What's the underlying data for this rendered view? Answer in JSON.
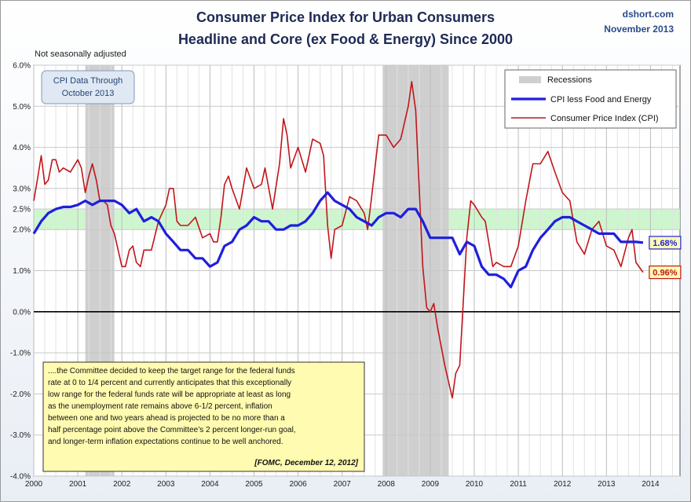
{
  "title_line1": "Consumer Price Index for Urban Consumers",
  "title_line2": "Headline and Core (ex Food & Energy) Since 2000",
  "source": "dshort.com",
  "date": "November 2013",
  "note": "Not seasonally adjusted",
  "data_through_line1": "CPI Data Through",
  "data_through_line2": "October 2013",
  "quote_lines": [
    "....the Committee decided  to keep the target range for the federal funds",
    "rate at 0 to 1/4 percent and currently anticipates that this exceptionally",
    "low range for the federal funds rate will be appropriate at least as long",
    "as the unemployment  rate remains above 6-1/2 percent, inflation",
    "between one and two years ahead is projected to be no more than a",
    "half percentage point above the Committee’s 2 percent longer-run goal,",
    "and longer-term inflation expectations continue to be well anchored."
  ],
  "quote_source": "[FOMC, December 12, 2012]",
  "colors": {
    "core": "#1f1fdd",
    "cpi": "#c0161b",
    "band": "#c9f5c9",
    "recession": "#cfcfcf"
  },
  "chart_data": {
    "type": "line",
    "xlabel": "",
    "ylabel": "",
    "xlim": [
      2000,
      2014.67
    ],
    "ylim": [
      -4.0,
      6.0
    ],
    "x_ticks": [
      "2000",
      "2001",
      "2002",
      "2003",
      "2004",
      "2005",
      "2006",
      "2007",
      "2008",
      "2009",
      "2010",
      "2011",
      "2012",
      "2013",
      "2014"
    ],
    "y_ticks": [
      "6.0%",
      "5.0%",
      "4.0%",
      "3.0%",
      "2.5%",
      "2.0%",
      "1.0%",
      "0.0%",
      "-1.0%",
      "-2.0%",
      "-3.0%",
      "-4.0%"
    ],
    "target_band": [
      2.0,
      2.5
    ],
    "recessions": [
      {
        "label": "Recessions",
        "start": 2001.17,
        "end": 2001.83
      },
      {
        "start": 2007.92,
        "end": 2009.42
      }
    ],
    "series": [
      {
        "name": "CPI less Food and Energy",
        "end_label": "1.68%",
        "points": [
          [
            2000.0,
            1.9
          ],
          [
            2000.17,
            2.2
          ],
          [
            2000.33,
            2.4
          ],
          [
            2000.5,
            2.5
          ],
          [
            2000.67,
            2.55
          ],
          [
            2000.83,
            2.55
          ],
          [
            2001.0,
            2.6
          ],
          [
            2001.17,
            2.7
          ],
          [
            2001.33,
            2.6
          ],
          [
            2001.5,
            2.7
          ],
          [
            2001.67,
            2.7
          ],
          [
            2001.83,
            2.7
          ],
          [
            2002.0,
            2.6
          ],
          [
            2002.17,
            2.4
          ],
          [
            2002.33,
            2.5
          ],
          [
            2002.5,
            2.2
          ],
          [
            2002.67,
            2.3
          ],
          [
            2002.83,
            2.2
          ],
          [
            2003.0,
            1.9
          ],
          [
            2003.17,
            1.7
          ],
          [
            2003.33,
            1.5
          ],
          [
            2003.5,
            1.5
          ],
          [
            2003.67,
            1.3
          ],
          [
            2003.83,
            1.3
          ],
          [
            2004.0,
            1.1
          ],
          [
            2004.17,
            1.2
          ],
          [
            2004.33,
            1.6
          ],
          [
            2004.5,
            1.7
          ],
          [
            2004.67,
            2.0
          ],
          [
            2004.83,
            2.1
          ],
          [
            2005.0,
            2.3
          ],
          [
            2005.17,
            2.2
          ],
          [
            2005.33,
            2.2
          ],
          [
            2005.5,
            2.0
          ],
          [
            2005.67,
            2.0
          ],
          [
            2005.83,
            2.1
          ],
          [
            2006.0,
            2.1
          ],
          [
            2006.17,
            2.2
          ],
          [
            2006.33,
            2.4
          ],
          [
            2006.5,
            2.7
          ],
          [
            2006.67,
            2.9
          ],
          [
            2006.83,
            2.7
          ],
          [
            2007.0,
            2.6
          ],
          [
            2007.17,
            2.5
          ],
          [
            2007.33,
            2.3
          ],
          [
            2007.5,
            2.2
          ],
          [
            2007.67,
            2.1
          ],
          [
            2007.83,
            2.3
          ],
          [
            2008.0,
            2.4
          ],
          [
            2008.17,
            2.4
          ],
          [
            2008.33,
            2.3
          ],
          [
            2008.5,
            2.5
          ],
          [
            2008.67,
            2.5
          ],
          [
            2008.83,
            2.2
          ],
          [
            2009.0,
            1.8
          ],
          [
            2009.17,
            1.8
          ],
          [
            2009.33,
            1.8
          ],
          [
            2009.5,
            1.8
          ],
          [
            2009.67,
            1.4
          ],
          [
            2009.83,
            1.7
          ],
          [
            2010.0,
            1.6
          ],
          [
            2010.17,
            1.1
          ],
          [
            2010.33,
            0.9
          ],
          [
            2010.5,
            0.9
          ],
          [
            2010.67,
            0.8
          ],
          [
            2010.83,
            0.6
          ],
          [
            2011.0,
            1.0
          ],
          [
            2011.17,
            1.1
          ],
          [
            2011.33,
            1.5
          ],
          [
            2011.5,
            1.8
          ],
          [
            2011.67,
            2.0
          ],
          [
            2011.83,
            2.2
          ],
          [
            2012.0,
            2.3
          ],
          [
            2012.17,
            2.3
          ],
          [
            2012.33,
            2.2
          ],
          [
            2012.5,
            2.1
          ],
          [
            2012.67,
            2.0
          ],
          [
            2012.83,
            1.9
          ],
          [
            2013.0,
            1.9
          ],
          [
            2013.17,
            1.9
          ],
          [
            2013.33,
            1.7
          ],
          [
            2013.5,
            1.7
          ],
          [
            2013.67,
            1.7
          ],
          [
            2013.83,
            1.68
          ]
        ]
      },
      {
        "name": "Consumer Price Index (CPI)",
        "end_label": "0.96%",
        "points": [
          [
            2000.0,
            2.7
          ],
          [
            2000.08,
            3.2
          ],
          [
            2000.17,
            3.8
          ],
          [
            2000.25,
            3.1
          ],
          [
            2000.33,
            3.2
          ],
          [
            2000.42,
            3.7
          ],
          [
            2000.5,
            3.7
          ],
          [
            2000.58,
            3.4
          ],
          [
            2000.67,
            3.5
          ],
          [
            2000.83,
            3.4
          ],
          [
            2001.0,
            3.7
          ],
          [
            2001.08,
            3.5
          ],
          [
            2001.17,
            2.9
          ],
          [
            2001.25,
            3.3
          ],
          [
            2001.33,
            3.6
          ],
          [
            2001.42,
            3.2
          ],
          [
            2001.5,
            2.7
          ],
          [
            2001.58,
            2.7
          ],
          [
            2001.67,
            2.6
          ],
          [
            2001.75,
            2.1
          ],
          [
            2001.83,
            1.9
          ],
          [
            2002.0,
            1.1
          ],
          [
            2002.08,
            1.1
          ],
          [
            2002.17,
            1.5
          ],
          [
            2002.25,
            1.6
          ],
          [
            2002.33,
            1.2
          ],
          [
            2002.42,
            1.1
          ],
          [
            2002.5,
            1.5
          ],
          [
            2002.67,
            1.5
          ],
          [
            2002.83,
            2.2
          ],
          [
            2003.0,
            2.6
          ],
          [
            2003.08,
            3.0
          ],
          [
            2003.17,
            3.0
          ],
          [
            2003.25,
            2.2
          ],
          [
            2003.33,
            2.1
          ],
          [
            2003.5,
            2.1
          ],
          [
            2003.67,
            2.3
          ],
          [
            2003.83,
            1.8
          ],
          [
            2004.0,
            1.9
          ],
          [
            2004.08,
            1.7
          ],
          [
            2004.17,
            1.7
          ],
          [
            2004.25,
            2.3
          ],
          [
            2004.33,
            3.1
          ],
          [
            2004.42,
            3.3
          ],
          [
            2004.5,
            3.0
          ],
          [
            2004.67,
            2.5
          ],
          [
            2004.83,
            3.5
          ],
          [
            2005.0,
            3.0
          ],
          [
            2005.17,
            3.1
          ],
          [
            2005.25,
            3.5
          ],
          [
            2005.42,
            2.5
          ],
          [
            2005.58,
            3.6
          ],
          [
            2005.67,
            4.7
          ],
          [
            2005.75,
            4.3
          ],
          [
            2005.83,
            3.5
          ],
          [
            2006.0,
            4.0
          ],
          [
            2006.17,
            3.4
          ],
          [
            2006.33,
            4.2
          ],
          [
            2006.5,
            4.1
          ],
          [
            2006.58,
            3.8
          ],
          [
            2006.67,
            2.1
          ],
          [
            2006.75,
            1.3
          ],
          [
            2006.83,
            2.0
          ],
          [
            2007.0,
            2.1
          ],
          [
            2007.17,
            2.8
          ],
          [
            2007.33,
            2.7
          ],
          [
            2007.5,
            2.4
          ],
          [
            2007.58,
            2.0
          ],
          [
            2007.67,
            2.8
          ],
          [
            2007.83,
            4.3
          ],
          [
            2008.0,
            4.3
          ],
          [
            2008.17,
            4.0
          ],
          [
            2008.33,
            4.2
          ],
          [
            2008.5,
            5.0
          ],
          [
            2008.58,
            5.6
          ],
          [
            2008.67,
            4.9
          ],
          [
            2008.83,
            1.1
          ],
          [
            2008.92,
            0.1
          ],
          [
            2009.0,
            0.0
          ],
          [
            2009.08,
            0.2
          ],
          [
            2009.17,
            -0.4
          ],
          [
            2009.33,
            -1.3
          ],
          [
            2009.5,
            -2.1
          ],
          [
            2009.58,
            -1.5
          ],
          [
            2009.67,
            -1.3
          ],
          [
            2009.83,
            1.8
          ],
          [
            2009.92,
            2.7
          ],
          [
            2010.0,
            2.6
          ],
          [
            2010.17,
            2.3
          ],
          [
            2010.25,
            2.2
          ],
          [
            2010.42,
            1.1
          ],
          [
            2010.5,
            1.2
          ],
          [
            2010.67,
            1.1
          ],
          [
            2010.83,
            1.1
          ],
          [
            2011.0,
            1.6
          ],
          [
            2011.17,
            2.7
          ],
          [
            2011.33,
            3.6
          ],
          [
            2011.5,
            3.6
          ],
          [
            2011.67,
            3.9
          ],
          [
            2011.83,
            3.4
          ],
          [
            2012.0,
            2.9
          ],
          [
            2012.17,
            2.7
          ],
          [
            2012.33,
            1.7
          ],
          [
            2012.5,
            1.4
          ],
          [
            2012.67,
            2.0
          ],
          [
            2012.83,
            2.2
          ],
          [
            2013.0,
            1.6
          ],
          [
            2013.17,
            1.5
          ],
          [
            2013.33,
            1.1
          ],
          [
            2013.5,
            1.8
          ],
          [
            2013.58,
            2.0
          ],
          [
            2013.67,
            1.2
          ],
          [
            2013.83,
            0.96
          ]
        ]
      }
    ]
  }
}
